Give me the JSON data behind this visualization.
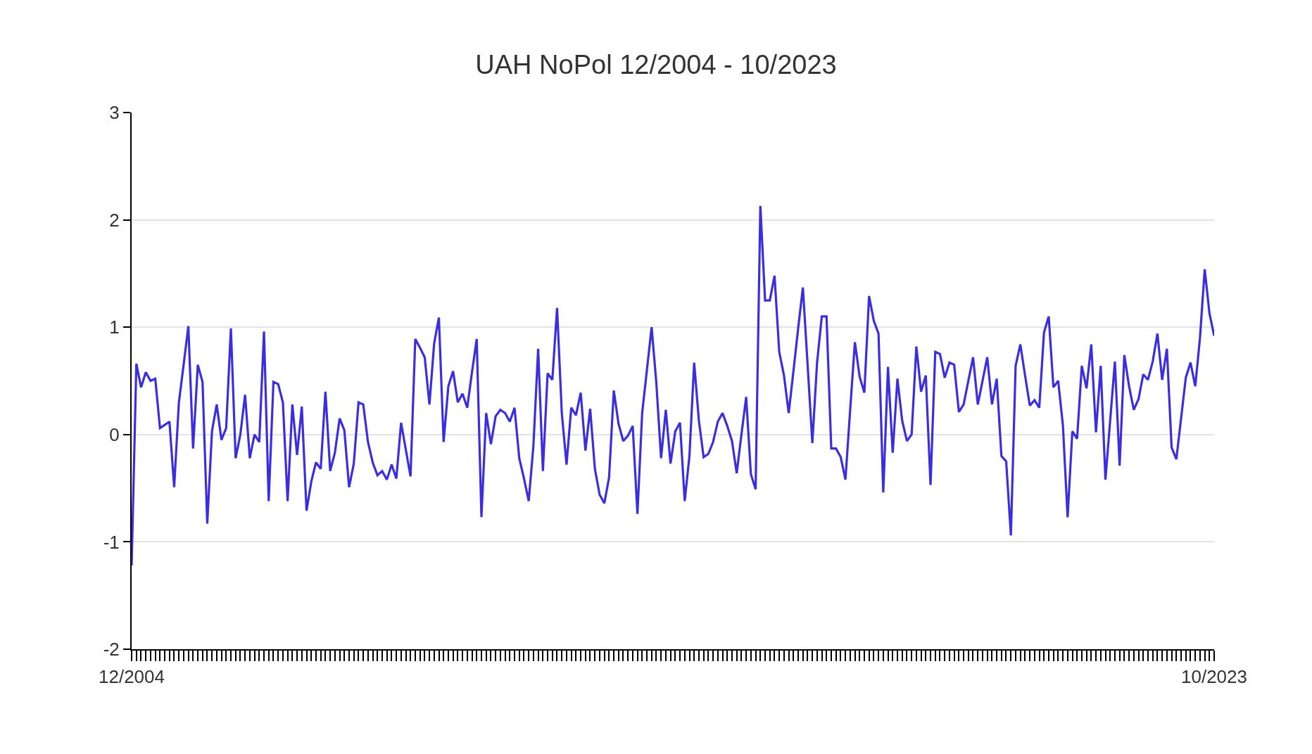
{
  "chart_data": {
    "type": "line",
    "title": "UAH NoPol 12/2004 - 10/2023",
    "categories": [
      "12/2004",
      null,
      null,
      null,
      null,
      null,
      null,
      null,
      null,
      null,
      null,
      null,
      null,
      null,
      null,
      null,
      null,
      null,
      null,
      null,
      null,
      null,
      null,
      null,
      null,
      null,
      null,
      null,
      null,
      null,
      null,
      null,
      null,
      null,
      null,
      null,
      null,
      null,
      null,
      null,
      null,
      null,
      null,
      null,
      null,
      null,
      null,
      null,
      null,
      null,
      null,
      null,
      null,
      null,
      null,
      null,
      null,
      null,
      null,
      null,
      null,
      null,
      null,
      null,
      null,
      null,
      null,
      null,
      null,
      null,
      null,
      null,
      null,
      null,
      null,
      null,
      null,
      null,
      null,
      null,
      null,
      null,
      null,
      null,
      null,
      null,
      null,
      null,
      null,
      null,
      null,
      null,
      null,
      null,
      null,
      null,
      null,
      null,
      null,
      null,
      null,
      null,
      null,
      null,
      null,
      null,
      null,
      null,
      null,
      null,
      null,
      null,
      null,
      null,
      null,
      null,
      null,
      null,
      null,
      null,
      null,
      null,
      null,
      null,
      null,
      null,
      null,
      null,
      null,
      null,
      null,
      null,
      null,
      null,
      null,
      null,
      null,
      null,
      null,
      null,
      null,
      null,
      null,
      null,
      null,
      null,
      null,
      null,
      null,
      null,
      null,
      null,
      null,
      null,
      null,
      null,
      null,
      null,
      null,
      null,
      null,
      null,
      null,
      null,
      null,
      null,
      null,
      null,
      null,
      null,
      null,
      null,
      null,
      null,
      null,
      null,
      null,
      null,
      null,
      null,
      null,
      null,
      null,
      null,
      null,
      null,
      null,
      null,
      null,
      null,
      null,
      null,
      null,
      null,
      null,
      null,
      null,
      null,
      null,
      null,
      null,
      null,
      null,
      null,
      null,
      null,
      null,
      null,
      null,
      null,
      null,
      null,
      null,
      null,
      null,
      null,
      null,
      null,
      null,
      null,
      null,
      null,
      null,
      null,
      null,
      null,
      null,
      null,
      null,
      "10/2023"
    ],
    "series": [
      {
        "color": "#3b2ee0",
        "values": [
          -1.22,
          0.66,
          0.44,
          0.58,
          0.5,
          0.52,
          0.06,
          0.09,
          0.12,
          -0.49,
          0.3,
          0.65,
          1.01,
          -0.13,
          0.65,
          0.49,
          -0.83,
          0.03,
          0.28,
          -0.05,
          0.06,
          0.99,
          -0.22,
          0.0,
          0.37,
          -0.22,
          0.0,
          -0.07,
          0.96,
          -0.62,
          0.49,
          0.47,
          0.3,
          -0.62,
          0.28,
          -0.19,
          0.26,
          -0.71,
          -0.44,
          -0.26,
          -0.32,
          0.4,
          -0.34,
          -0.17,
          0.15,
          0.04,
          -0.49,
          -0.27,
          0.3,
          0.28,
          -0.07,
          -0.26,
          -0.38,
          -0.34,
          -0.42,
          -0.28,
          -0.41,
          0.11,
          -0.14,
          -0.39,
          0.89,
          0.81,
          0.72,
          0.28,
          0.85,
          1.09,
          -0.07,
          0.45,
          0.59,
          0.3,
          0.38,
          0.25,
          0.58,
          0.89,
          -0.77,
          0.2,
          -0.09,
          0.17,
          0.23,
          0.2,
          0.12,
          0.25,
          -0.22,
          -0.41,
          -0.62,
          -0.1,
          0.8,
          -0.34,
          0.57,
          0.51,
          1.18,
          0.2,
          -0.28,
          0.25,
          0.18,
          0.39,
          -0.15,
          0.24,
          -0.32,
          -0.56,
          -0.64,
          -0.4,
          0.41,
          0.1,
          -0.06,
          -0.01,
          0.08,
          -0.74,
          0.2,
          0.6,
          1.0,
          0.48,
          -0.22,
          0.23,
          -0.27,
          0.03,
          0.11,
          -0.62,
          -0.2,
          0.67,
          0.13,
          -0.21,
          -0.18,
          -0.07,
          0.12,
          0.2,
          0.08,
          -0.06,
          -0.36,
          0.0,
          0.35,
          -0.37,
          -0.51,
          2.13,
          1.25,
          1.25,
          1.48,
          0.77,
          0.55,
          0.2,
          0.59,
          0.99,
          1.37,
          0.65,
          -0.08,
          0.67,
          1.1,
          1.1,
          -0.13,
          -0.13,
          -0.21,
          -0.42,
          0.23,
          0.86,
          0.54,
          0.39,
          1.29,
          1.06,
          0.94,
          -0.54,
          0.63,
          -0.17,
          0.52,
          0.13,
          -0.06,
          0.0,
          0.82,
          0.4,
          0.55,
          -0.47,
          0.77,
          0.75,
          0.53,
          0.67,
          0.65,
          0.21,
          0.28,
          0.5,
          0.72,
          0.28,
          0.5,
          0.72,
          0.28,
          0.52,
          -0.2,
          -0.25,
          -0.94,
          0.64,
          0.84,
          0.55,
          0.27,
          0.32,
          0.25,
          0.95,
          1.1,
          0.44,
          0.5,
          0.09,
          -0.77,
          0.03,
          -0.04,
          0.64,
          0.43,
          0.84,
          0.02,
          0.64,
          -0.42,
          0.13,
          0.68,
          -0.29,
          0.74,
          0.45,
          0.23,
          0.33,
          0.56,
          0.51,
          0.68,
          0.94,
          0.51,
          0.8,
          -0.12,
          -0.23,
          0.15,
          0.53,
          0.67,
          0.45,
          0.9,
          1.54,
          1.13,
          0.92
        ]
      }
    ],
    "ylim": [
      -2,
      3
    ],
    "yticks": [
      -2,
      -1,
      0,
      1,
      2,
      3
    ],
    "grid": "y",
    "marker": "none",
    "line_style": "solid"
  }
}
